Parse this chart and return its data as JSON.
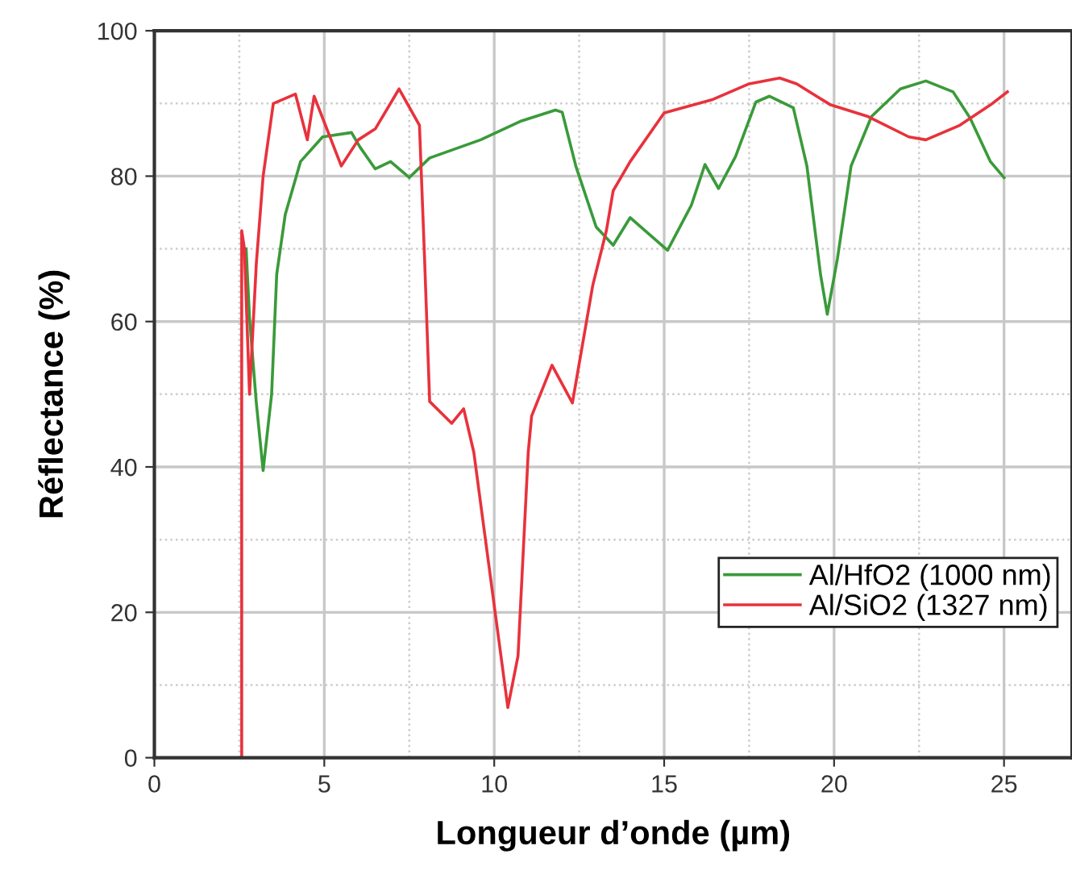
{
  "chart_data": {
    "type": "line",
    "xlabel": "Longueur d’onde (µm)",
    "ylabel": "Réflectance (%)",
    "xlim": [
      0,
      27
    ],
    "ylim": [
      0,
      100
    ],
    "xticks": [
      0,
      5,
      10,
      15,
      20,
      25
    ],
    "yticks": [
      0,
      20,
      40,
      60,
      80,
      100
    ],
    "grid": true,
    "legend": "bottom right",
    "marker": "none",
    "line_style": "solid",
    "series": [
      {
        "name": "Al/HfO2 (1000 nm)",
        "color": "#3a9a3a",
        "x": [
          2.7,
          2.8,
          3.0,
          3.2,
          3.45,
          3.6,
          3.85,
          4.3,
          4.95,
          5.8,
          6.05,
          6.5,
          6.95,
          7.5,
          8.1,
          9.6,
          10.8,
          11.8,
          12.0,
          12.4,
          13.0,
          13.5,
          14.0,
          15.1,
          15.8,
          16.2,
          16.6,
          17.1,
          17.7,
          18.1,
          18.8,
          19.2,
          19.6,
          19.8,
          20.1,
          20.5,
          21.1,
          21.95,
          22.7,
          23.5,
          24.0,
          24.6,
          25.0
        ],
        "values": [
          70,
          60.5,
          48.8,
          39.5,
          50,
          66.5,
          74.7,
          82,
          85.4,
          86,
          84,
          81,
          82,
          79.8,
          82.5,
          85,
          87.6,
          89.1,
          88.8,
          81.4,
          73,
          70.5,
          74.3,
          69.8,
          76,
          81.6,
          78.3,
          82.7,
          90.2,
          91,
          89.4,
          81.4,
          66.5,
          61,
          68.7,
          81.4,
          88.2,
          92,
          93.1,
          91.6,
          88,
          82,
          79.8
        ]
      },
      {
        "name": "Al/SiO2 (1327 nm)",
        "color": "#e8323c",
        "x": [
          2.57,
          2.57,
          2.65,
          2.8,
          3.0,
          3.2,
          3.5,
          4.15,
          4.5,
          4.7,
          5.5,
          6.0,
          6.5,
          7.2,
          7.8,
          7.95,
          8.1,
          8.75,
          9.1,
          9.4,
          10.4,
          10.7,
          11.0,
          11.1,
          11.7,
          12.3,
          12.9,
          13.3,
          13.5,
          14.0,
          15.0,
          16.4,
          17.5,
          18.4,
          18.9,
          19.9,
          21.0,
          22.2,
          22.7,
          23.7,
          24.6,
          25.1
        ],
        "values": [
          0,
          72.5,
          70,
          50,
          68,
          80,
          90,
          91.3,
          85,
          91,
          81.4,
          85,
          86.5,
          92,
          87,
          68.7,
          49,
          46,
          48,
          42,
          6.9,
          14,
          42,
          47,
          54,
          48.8,
          65,
          72.5,
          78,
          82,
          88.7,
          90.5,
          92.7,
          93.5,
          92.7,
          89.8,
          88.2,
          85.4,
          85,
          87,
          89.8,
          91.6
        ]
      }
    ]
  }
}
